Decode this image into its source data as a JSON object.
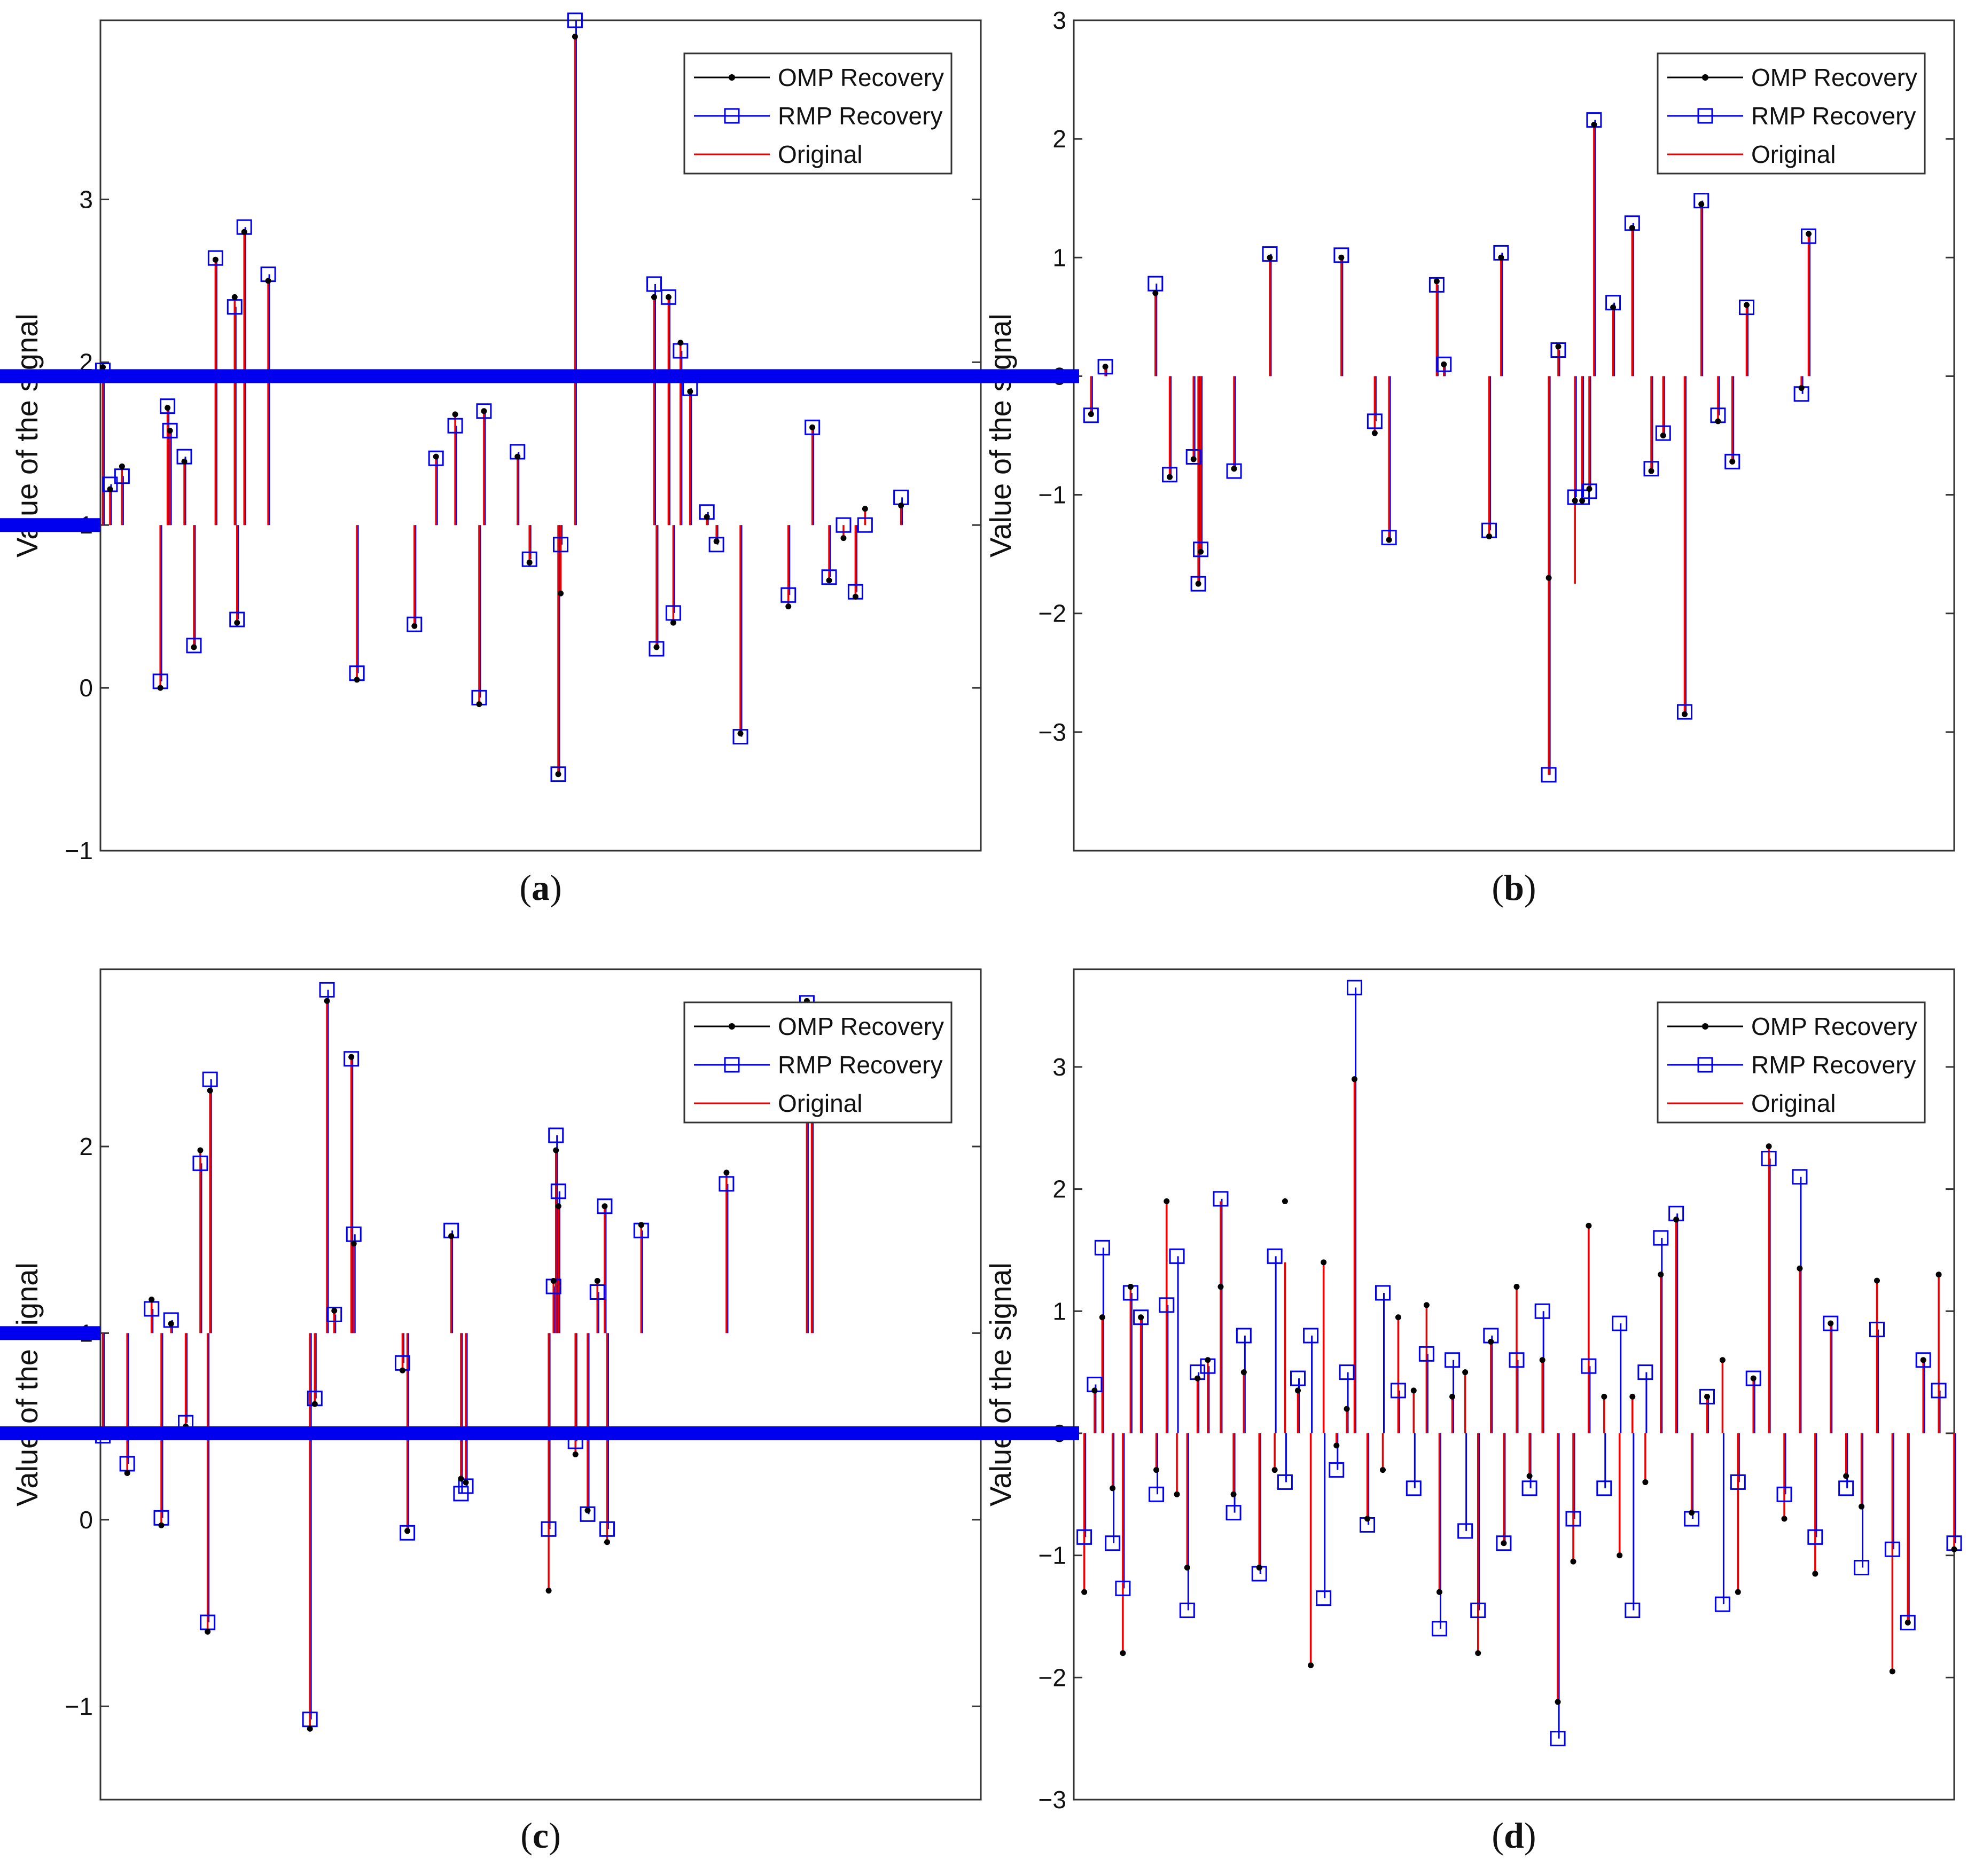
{
  "colors": {
    "omp": "#000000",
    "rmp": "#0000ee",
    "original": "#ee0000",
    "baseline": "#0000ee",
    "axes": "#333333"
  },
  "chart_data": [
    {
      "id": "a",
      "caption": "a",
      "type": "line",
      "ylabel": "Value of the signal",
      "ylim": [
        -1,
        4.1
      ],
      "yticks": [
        -1,
        0,
        1,
        2,
        3
      ],
      "ytick_labels": [
        "−1",
        "0",
        "1",
        "2",
        "3"
      ],
      "baseline": 1,
      "legend": [
        "OMP Recovery",
        "RMP Recovery",
        "Original"
      ],
      "legend_position": "top-right",
      "x": [
        1,
        4,
        9,
        25,
        28,
        29,
        35,
        39,
        48,
        56,
        57,
        60,
        70,
        107,
        131,
        140,
        148,
        158,
        160,
        174,
        179,
        191,
        192,
        198,
        231,
        232,
        237,
        239,
        242,
        246,
        253,
        257,
        267,
        287,
        297,
        304,
        310,
        315,
        319,
        334
      ],
      "series": [
        {
          "name": "OMP Recovery",
          "values": [
            1.97,
            1.22,
            1.36,
            0.0,
            1.72,
            1.58,
            1.39,
            0.25,
            2.63,
            2.4,
            0.4,
            2.8,
            2.5,
            0.05,
            0.38,
            1.42,
            1.68,
            -0.1,
            1.7,
            1.42,
            0.77,
            -0.53,
            0.58,
            4.0,
            2.4,
            0.25,
            2.4,
            0.4,
            2.12,
            1.82,
            1.05,
            0.9,
            -0.28,
            0.5,
            1.6,
            0.66,
            0.92,
            0.56,
            1.1,
            1.12
          ]
        },
        {
          "name": "RMP Recovery",
          "values": [
            1.95,
            1.25,
            1.3,
            0.04,
            1.73,
            1.58,
            1.42,
            0.26,
            2.64,
            2.34,
            0.42,
            2.83,
            2.54,
            0.09,
            0.39,
            1.41,
            1.61,
            -0.06,
            1.7,
            1.45,
            0.79,
            -0.53,
            0.88,
            4.1,
            2.48,
            0.24,
            2.4,
            0.46,
            2.07,
            1.84,
            1.08,
            0.88,
            -0.3,
            0.57,
            1.6,
            0.68,
            1.0,
            0.59,
            1.0,
            1.17
          ]
        },
        {
          "name": "Original",
          "values": [
            1.97,
            1.22,
            1.36,
            0.0,
            1.72,
            1.58,
            1.39,
            0.25,
            2.63,
            2.4,
            0.4,
            2.8,
            2.5,
            0.05,
            0.38,
            1.42,
            1.68,
            -0.1,
            1.7,
            1.42,
            0.77,
            -0.53,
            0.58,
            4.0,
            2.4,
            0.25,
            2.4,
            0.4,
            2.12,
            1.82,
            1.05,
            0.9,
            -0.28,
            0.5,
            1.6,
            0.66,
            0.92,
            0.56,
            1.1,
            1.12
          ]
        }
      ]
    },
    {
      "id": "b",
      "caption": "b",
      "type": "line",
      "ylabel": "Value of the signal",
      "ylim": [
        -4,
        3
      ],
      "yticks": [
        -3,
        -2,
        -1,
        0,
        1,
        2,
        3
      ],
      "ytick_labels": [
        "−3",
        "−2",
        "−1",
        "0",
        "1",
        "2",
        "3"
      ],
      "baseline": 0,
      "legend": [
        "OMP Recovery",
        "RMP Recovery",
        "Original"
      ],
      "legend_position": "top-right",
      "x": [
        5,
        11,
        32,
        38,
        48,
        50,
        51,
        65,
        80,
        110,
        124,
        130,
        150,
        153,
        172,
        177,
        197,
        201,
        208,
        211,
        214,
        216,
        224,
        232,
        240,
        245,
        254,
        261,
        268,
        274,
        280,
        303,
        306
      ],
      "series": [
        {
          "name": "OMP Recovery",
          "values": [
            -0.32,
            0.08,
            0.7,
            -0.85,
            -0.7,
            -1.75,
            -1.48,
            -0.78,
            1.0,
            1.0,
            -0.48,
            -1.38,
            0.8,
            0.1,
            -1.35,
            1.0,
            -1.7,
            0.25,
            -1.05,
            -1.05,
            -0.95,
            2.12,
            0.58,
            1.25,
            -0.8,
            -0.5,
            -2.85,
            1.45,
            -0.38,
            -0.72,
            0.6,
            -0.1,
            1.2
          ]
        },
        {
          "name": "RMP Recovery",
          "values": [
            -0.33,
            0.08,
            0.78,
            -0.83,
            -0.68,
            -1.75,
            -1.46,
            -0.8,
            1.03,
            1.02,
            -0.38,
            -1.36,
            0.77,
            0.1,
            -1.3,
            1.04,
            -3.36,
            0.22,
            -1.02,
            -1.02,
            -0.97,
            2.16,
            0.62,
            1.29,
            -0.78,
            -0.48,
            -2.83,
            1.48,
            -0.33,
            -0.72,
            0.58,
            -0.15,
            1.18
          ]
        },
        {
          "name": "Original",
          "values": [
            -0.32,
            0.08,
            0.7,
            -0.85,
            -0.7,
            -1.75,
            -1.48,
            -0.78,
            1.0,
            1.0,
            -0.48,
            -1.38,
            0.8,
            0.1,
            -1.35,
            1.0,
            -3.36,
            0.25,
            -1.75,
            -1.05,
            -0.95,
            2.12,
            0.58,
            1.25,
            -0.8,
            -0.5,
            -2.85,
            1.45,
            -0.38,
            -0.72,
            0.6,
            -0.1,
            1.2
          ]
        }
      ]
    },
    {
      "id": "c",
      "caption": "c",
      "type": "line",
      "ylabel": "Value of the signal",
      "ylim": [
        -1.5,
        2.95
      ],
      "yticks": [
        -1,
        0,
        1,
        2
      ],
      "ytick_labels": [
        "−1",
        "0",
        "1",
        "2"
      ],
      "baseline": 1,
      "legend": [
        "OMP Recovery",
        "RMP Recovery",
        "Original"
      ],
      "legend_position": "top-right",
      "x": [
        1,
        11,
        21,
        25,
        29,
        35,
        41,
        44,
        45,
        86,
        88,
        93,
        96,
        103,
        104,
        124,
        126,
        144,
        148,
        150,
        184,
        186,
        187,
        188,
        195,
        200,
        204,
        207,
        208,
        222,
        257,
        290,
        292
      ],
      "series": [
        {
          "name": "OMP Recovery",
          "values": [
            0.45,
            0.25,
            1.18,
            -0.03,
            1.05,
            0.5,
            1.98,
            -0.6,
            2.3,
            -1.12,
            0.62,
            2.78,
            1.12,
            2.48,
            1.48,
            0.8,
            -0.06,
            1.52,
            0.22,
            0.2,
            -0.38,
            1.28,
            1.98,
            1.68,
            0.35,
            0.05,
            1.28,
            1.68,
            -0.12,
            1.58,
            1.86,
            2.78,
            2.25
          ]
        },
        {
          "name": "RMP Recovery",
          "values": [
            0.45,
            0.3,
            1.13,
            0.01,
            1.07,
            0.52,
            1.91,
            -0.55,
            2.36,
            -1.07,
            0.65,
            2.84,
            1.1,
            2.47,
            1.53,
            0.84,
            -0.07,
            1.55,
            0.14,
            0.18,
            -0.05,
            1.25,
            2.06,
            1.76,
            0.42,
            0.03,
            1.22,
            1.68,
            -0.05,
            1.55,
            1.8,
            2.77,
            2.22
          ]
        },
        {
          "name": "Original",
          "values": [
            0.45,
            0.25,
            1.18,
            -0.03,
            1.05,
            0.5,
            1.98,
            -0.6,
            2.3,
            -1.12,
            0.62,
            2.78,
            1.12,
            2.48,
            1.48,
            0.8,
            -0.06,
            1.52,
            0.22,
            0.2,
            -0.38,
            1.28,
            1.98,
            1.68,
            0.35,
            0.05,
            1.28,
            1.68,
            -0.12,
            1.58,
            1.86,
            2.78,
            2.25
          ]
        }
      ]
    },
    {
      "id": "d",
      "caption": "d",
      "type": "line",
      "ylabel": "Value of the signal",
      "ylim": [
        -3,
        3.8
      ],
      "yticks": [
        -3,
        -2,
        -1,
        0,
        1,
        2,
        3
      ],
      "ytick_labels": [
        "−3",
        "−2",
        "−1",
        "0",
        "1",
        "2",
        "3"
      ],
      "baseline": 0,
      "legend": [
        "OMP Recovery",
        "RMP Recovery",
        "Original"
      ],
      "legend_position": "top-right",
      "x": [
        2,
        6,
        9,
        13,
        17,
        20,
        24,
        30,
        34,
        38,
        42,
        46,
        50,
        55,
        60,
        64,
        70,
        76,
        80,
        85,
        90,
        95,
        100,
        104,
        107,
        112,
        118,
        124,
        130,
        135,
        140,
        145,
        150,
        155,
        160,
        165,
        170,
        175,
        180,
        186,
        192,
        198,
        204,
        210,
        215,
        220,
        226,
        232,
        238,
        244,
        250,
        256,
        262,
        268,
        274,
        280,
        286,
        292,
        298,
        304,
        310,
        316,
        322,
        328,
        334,
        340
      ],
      "series": [
        {
          "name": "OMP Recovery",
          "values": [
            -1.3,
            0.35,
            0.95,
            -0.45,
            -1.8,
            1.2,
            0.95,
            -0.3,
            1.9,
            -0.5,
            -1.1,
            0.45,
            0.6,
            1.2,
            -0.5,
            0.5,
            -1.1,
            -0.3,
            1.9,
            0.35,
            -1.9,
            1.4,
            -0.1,
            0.2,
            2.9,
            -0.7,
            -0.3,
            0.95,
            0.35,
            1.05,
            -1.3,
            0.3,
            0.5,
            -1.8,
            0.75,
            -0.9,
            1.2,
            -0.35,
            0.6,
            -2.2,
            -1.05,
            1.7,
            0.3,
            -1.0,
            0.3,
            -0.4,
            1.3,
            1.75,
            -0.65,
            0.3,
            0.6,
            -1.3,
            0.45,
            2.35,
            -0.7,
            1.35,
            -1.15,
            0.9,
            -0.35,
            -0.6,
            1.25,
            -1.95,
            -1.55,
            0.6,
            1.3,
            -0.95
          ]
        },
        {
          "name": "RMP Recovery",
          "values": [
            -0.85,
            0.4,
            1.52,
            -0.9,
            -1.27,
            1.15,
            0.95,
            -0.5,
            1.05,
            1.45,
            -1.45,
            0.5,
            0.55,
            1.92,
            -0.65,
            0.8,
            -1.15,
            1.45,
            -0.4,
            0.45,
            0.8,
            -1.35,
            -0.3,
            0.5,
            3.65,
            -0.75,
            1.15,
            0.35,
            -0.45,
            0.65,
            -1.6,
            0.6,
            -0.8,
            -1.45,
            0.8,
            -0.9,
            0.6,
            -0.45,
            1.0,
            -2.5,
            -0.7,
            0.55,
            -0.45,
            0.9,
            -1.45,
            0.5,
            1.6,
            1.8,
            -0.7,
            0.3,
            -1.4,
            -0.4,
            0.45,
            2.25,
            -0.5,
            2.1,
            -0.85,
            0.9,
            -0.45,
            -1.1,
            0.85,
            -0.95,
            -1.55,
            0.6,
            0.35,
            -0.9
          ]
        },
        {
          "name": "Original",
          "values": [
            -1.3,
            0.35,
            0.95,
            -0.45,
            -1.8,
            1.2,
            0.95,
            -0.3,
            1.9,
            -0.5,
            -1.1,
            0.45,
            0.6,
            1.9,
            -0.5,
            0.5,
            -1.1,
            -0.3,
            1.4,
            0.35,
            -1.9,
            1.4,
            -0.1,
            0.2,
            2.9,
            -0.7,
            -0.3,
            0.95,
            0.35,
            1.05,
            -1.3,
            0.3,
            0.5,
            -1.8,
            0.75,
            -0.9,
            1.2,
            -0.35,
            0.6,
            -2.2,
            -1.05,
            1.7,
            0.3,
            -1.0,
            0.3,
            -0.4,
            1.3,
            1.75,
            -0.65,
            0.3,
            0.6,
            -1.3,
            0.45,
            2.35,
            -0.7,
            1.35,
            -1.15,
            0.9,
            -0.35,
            -0.6,
            1.25,
            -1.95,
            -1.55,
            0.6,
            1.3,
            -0.95
          ]
        }
      ]
    }
  ]
}
